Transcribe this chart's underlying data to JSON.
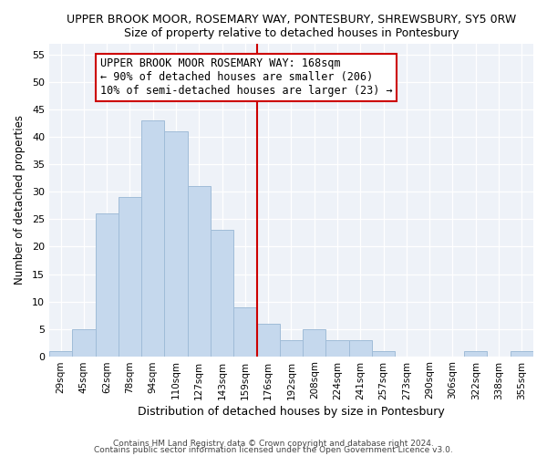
{
  "title": "UPPER BROOK MOOR, ROSEMARY WAY, PONTESBURY, SHREWSBURY, SY5 0RW",
  "subtitle": "Size of property relative to detached houses in Pontesbury",
  "xlabel": "Distribution of detached houses by size in Pontesbury",
  "ylabel": "Number of detached properties",
  "bar_labels": [
    "29sqm",
    "45sqm",
    "62sqm",
    "78sqm",
    "94sqm",
    "110sqm",
    "127sqm",
    "143sqm",
    "159sqm",
    "176sqm",
    "192sqm",
    "208sqm",
    "224sqm",
    "241sqm",
    "257sqm",
    "273sqm",
    "290sqm",
    "306sqm",
    "322sqm",
    "338sqm",
    "355sqm"
  ],
  "bar_values": [
    1,
    5,
    26,
    29,
    43,
    41,
    31,
    23,
    9,
    6,
    3,
    5,
    3,
    3,
    1,
    0,
    0,
    0,
    1,
    0,
    1
  ],
  "bar_color": "#c5d8ed",
  "bar_edge_color": "#a0bcd8",
  "vline_color": "#cc0000",
  "annotation_line1": "UPPER BROOK MOOR ROSEMARY WAY: 168sqm",
  "annotation_line2": "← 90% of detached houses are smaller (206)",
  "annotation_line3": "10% of semi-detached houses are larger (23) →",
  "ylim": [
    0,
    57
  ],
  "yticks": [
    0,
    5,
    10,
    15,
    20,
    25,
    30,
    35,
    40,
    45,
    50,
    55
  ],
  "footer1": "Contains HM Land Registry data © Crown copyright and database right 2024.",
  "footer2": "Contains public sector information licensed under the Open Government Licence v3.0.",
  "bg_color": "#eef2f8",
  "title_fontsize": 9,
  "annotation_fontsize": 8.5
}
